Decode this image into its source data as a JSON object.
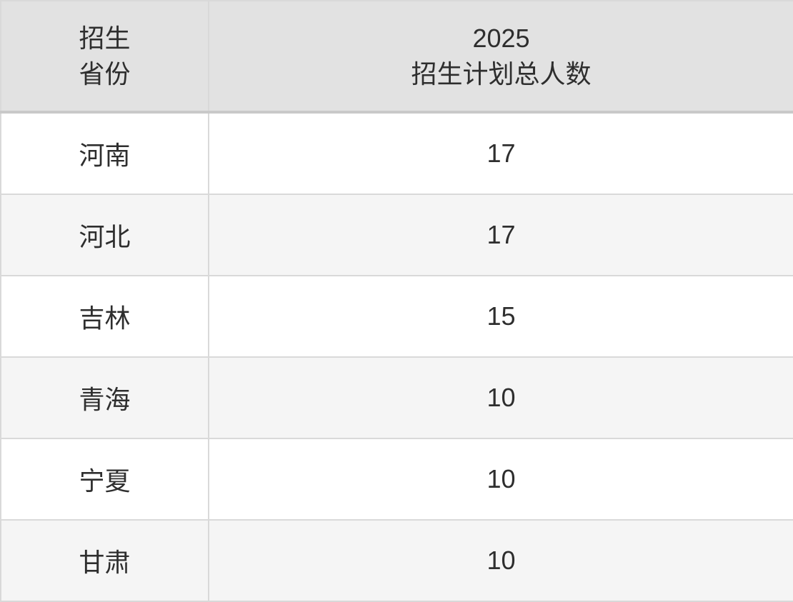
{
  "chart_data": {
    "type": "table",
    "title": "2025 招生计划",
    "columns": [
      "招生省份",
      "2025招生计划总人数"
    ],
    "rows": [
      [
        "河南",
        17
      ],
      [
        "河北",
        17
      ],
      [
        "吉林",
        15
      ],
      [
        "青海",
        10
      ],
      [
        "宁夏",
        10
      ],
      [
        "甘肃",
        10
      ]
    ]
  },
  "table": {
    "header": {
      "province_lines": [
        "招生",
        "省份"
      ],
      "total_lines": [
        "2025",
        "招生计划总人数"
      ]
    },
    "rows": [
      {
        "province": "河南",
        "total": "17"
      },
      {
        "province": "河北",
        "total": "17"
      },
      {
        "province": "吉林",
        "total": "15"
      },
      {
        "province": "青海",
        "total": "10"
      },
      {
        "province": "宁夏",
        "total": "10"
      },
      {
        "province": "甘肃",
        "total": "10"
      }
    ],
    "colors": {
      "header_bg": "#e2e2e2",
      "row_bg": "#ffffff",
      "row_alt_bg": "#f5f5f5",
      "border": "#d9d9d9",
      "outer_border": "#c9c9c9",
      "text": "#2e2e2e"
    }
  }
}
